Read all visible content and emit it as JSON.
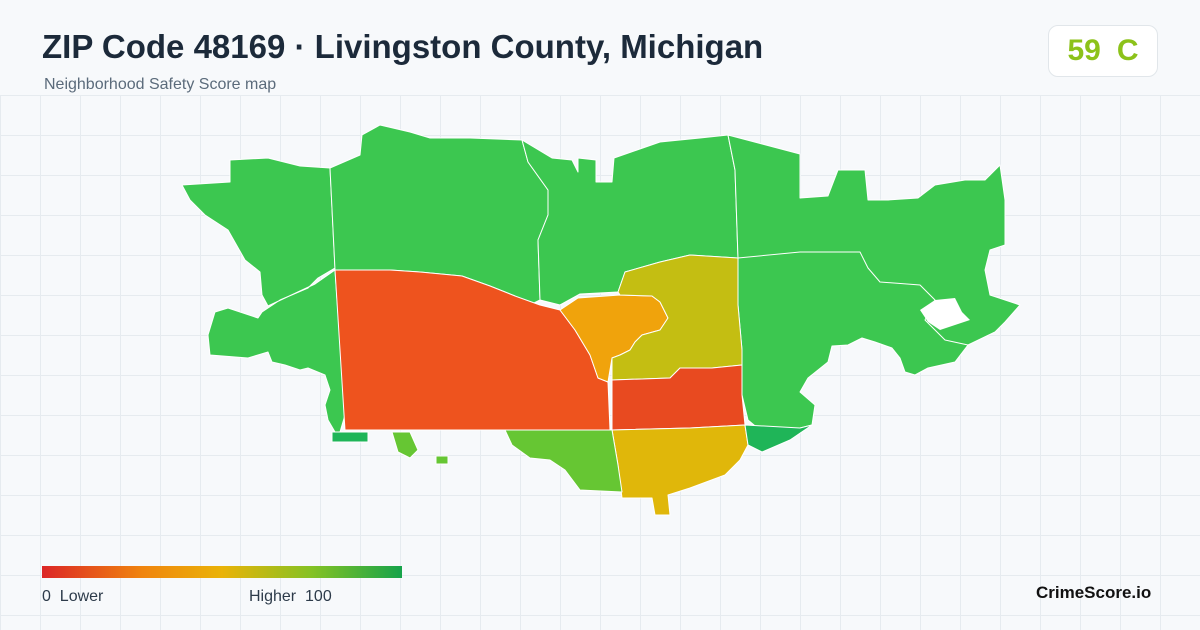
{
  "header": {
    "title": "ZIP Code 48169 · Livingston County, Michigan",
    "subtitle": "Neighborhood Safety Score map"
  },
  "score_badge": {
    "score": "59",
    "grade": "C",
    "color": "#8cc21a"
  },
  "map": {
    "regions": [
      {
        "id": "northwest",
        "score_band": "high",
        "color": "#3cc750"
      },
      {
        "id": "north-center",
        "score_band": "high",
        "color": "#3cc750"
      },
      {
        "id": "north-east",
        "score_band": "high",
        "color": "#3cc750"
      },
      {
        "id": "far-east",
        "score_band": "high",
        "color": "#3cc750"
      },
      {
        "id": "east-middle",
        "score_band": "high",
        "color": "#3cc750"
      },
      {
        "id": "southwest-big",
        "score_band": "low",
        "color": "#ee531e"
      },
      {
        "id": "center-orange",
        "score_band": "medium-low",
        "color": "#f0a30c"
      },
      {
        "id": "center-olive",
        "score_band": "medium",
        "color": "#c4be12"
      },
      {
        "id": "center-red",
        "score_band": "low",
        "color": "#e84a20"
      },
      {
        "id": "south-yellow",
        "score_band": "medium",
        "color": "#e0b70a"
      },
      {
        "id": "south-lightgreen",
        "score_band": "medium-high",
        "color": "#66c633"
      },
      {
        "id": "southeast-darkgreen",
        "score_band": "high",
        "color": "#1fb558"
      }
    ]
  },
  "legend": {
    "min": "0",
    "min_label": "Lower",
    "max_label": "Higher",
    "max": "100"
  },
  "brand": "CrimeScore.io"
}
